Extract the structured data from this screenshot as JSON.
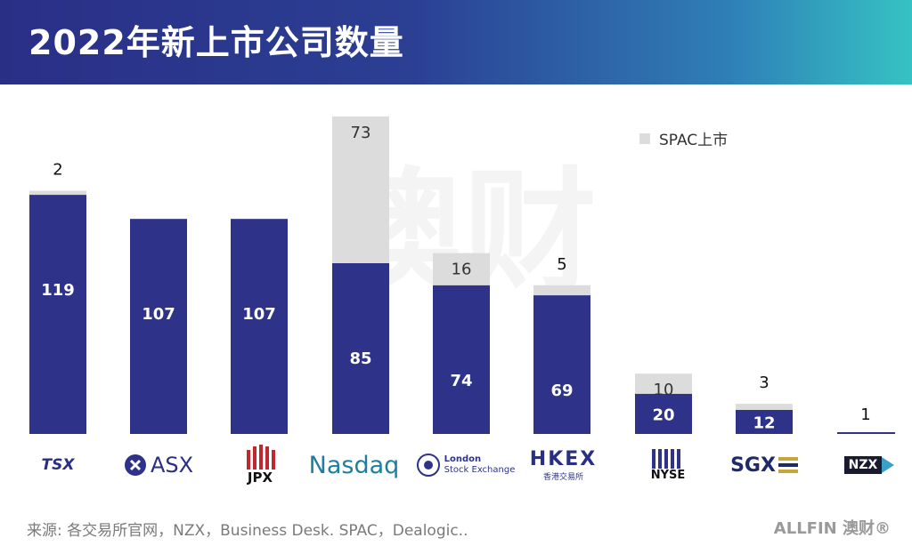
{
  "header": {
    "title": "2022年新上市公司数量"
  },
  "chart_data": {
    "type": "bar",
    "stacked": true,
    "categories": [
      "TSX",
      "ASX",
      "JPX",
      "Nasdaq",
      "London Stock Exchange",
      "HKEX",
      "NYSE",
      "SGX",
      "NZX"
    ],
    "series": [
      {
        "name": "",
        "values": [
          119,
          107,
          107,
          85,
          74,
          69,
          20,
          12,
          1
        ],
        "color": "#2e3288"
      },
      {
        "name": "SPAC上市",
        "values": [
          2,
          0,
          0,
          73,
          16,
          5,
          10,
          3,
          0
        ],
        "color": "#dcdcdc"
      }
    ],
    "ylim": [
      0,
      160
    ],
    "legend": "top-right",
    "grid": false
  },
  "labels": {
    "regular": [
      "119",
      "107",
      "107",
      "85",
      "74",
      "69",
      "20",
      "12",
      ""
    ],
    "spac": [
      "",
      "",
      "",
      "73",
      "16",
      "",
      "10",
      "",
      ""
    ],
    "above": [
      "2",
      "",
      "",
      "",
      "",
      "5",
      "",
      "3",
      "1"
    ]
  },
  "logos": {
    "tsx": "TSX",
    "asx": "ASX",
    "jpx": "JPX",
    "nasdaq": "Nasdaq",
    "lse_line1": "London",
    "lse_line2": "Stock Exchange",
    "hkex": "HKEX",
    "hkex_sub": "香港交易所",
    "nyse": "NYSE",
    "sgx": "SGX",
    "nzx": "NZX"
  },
  "footer": {
    "source": "来源: 各交易所官网，NZX，Business Desk. SPAC，Dealogic..",
    "brand": "ALLFIN 澳财®"
  },
  "watermark": "澳财"
}
